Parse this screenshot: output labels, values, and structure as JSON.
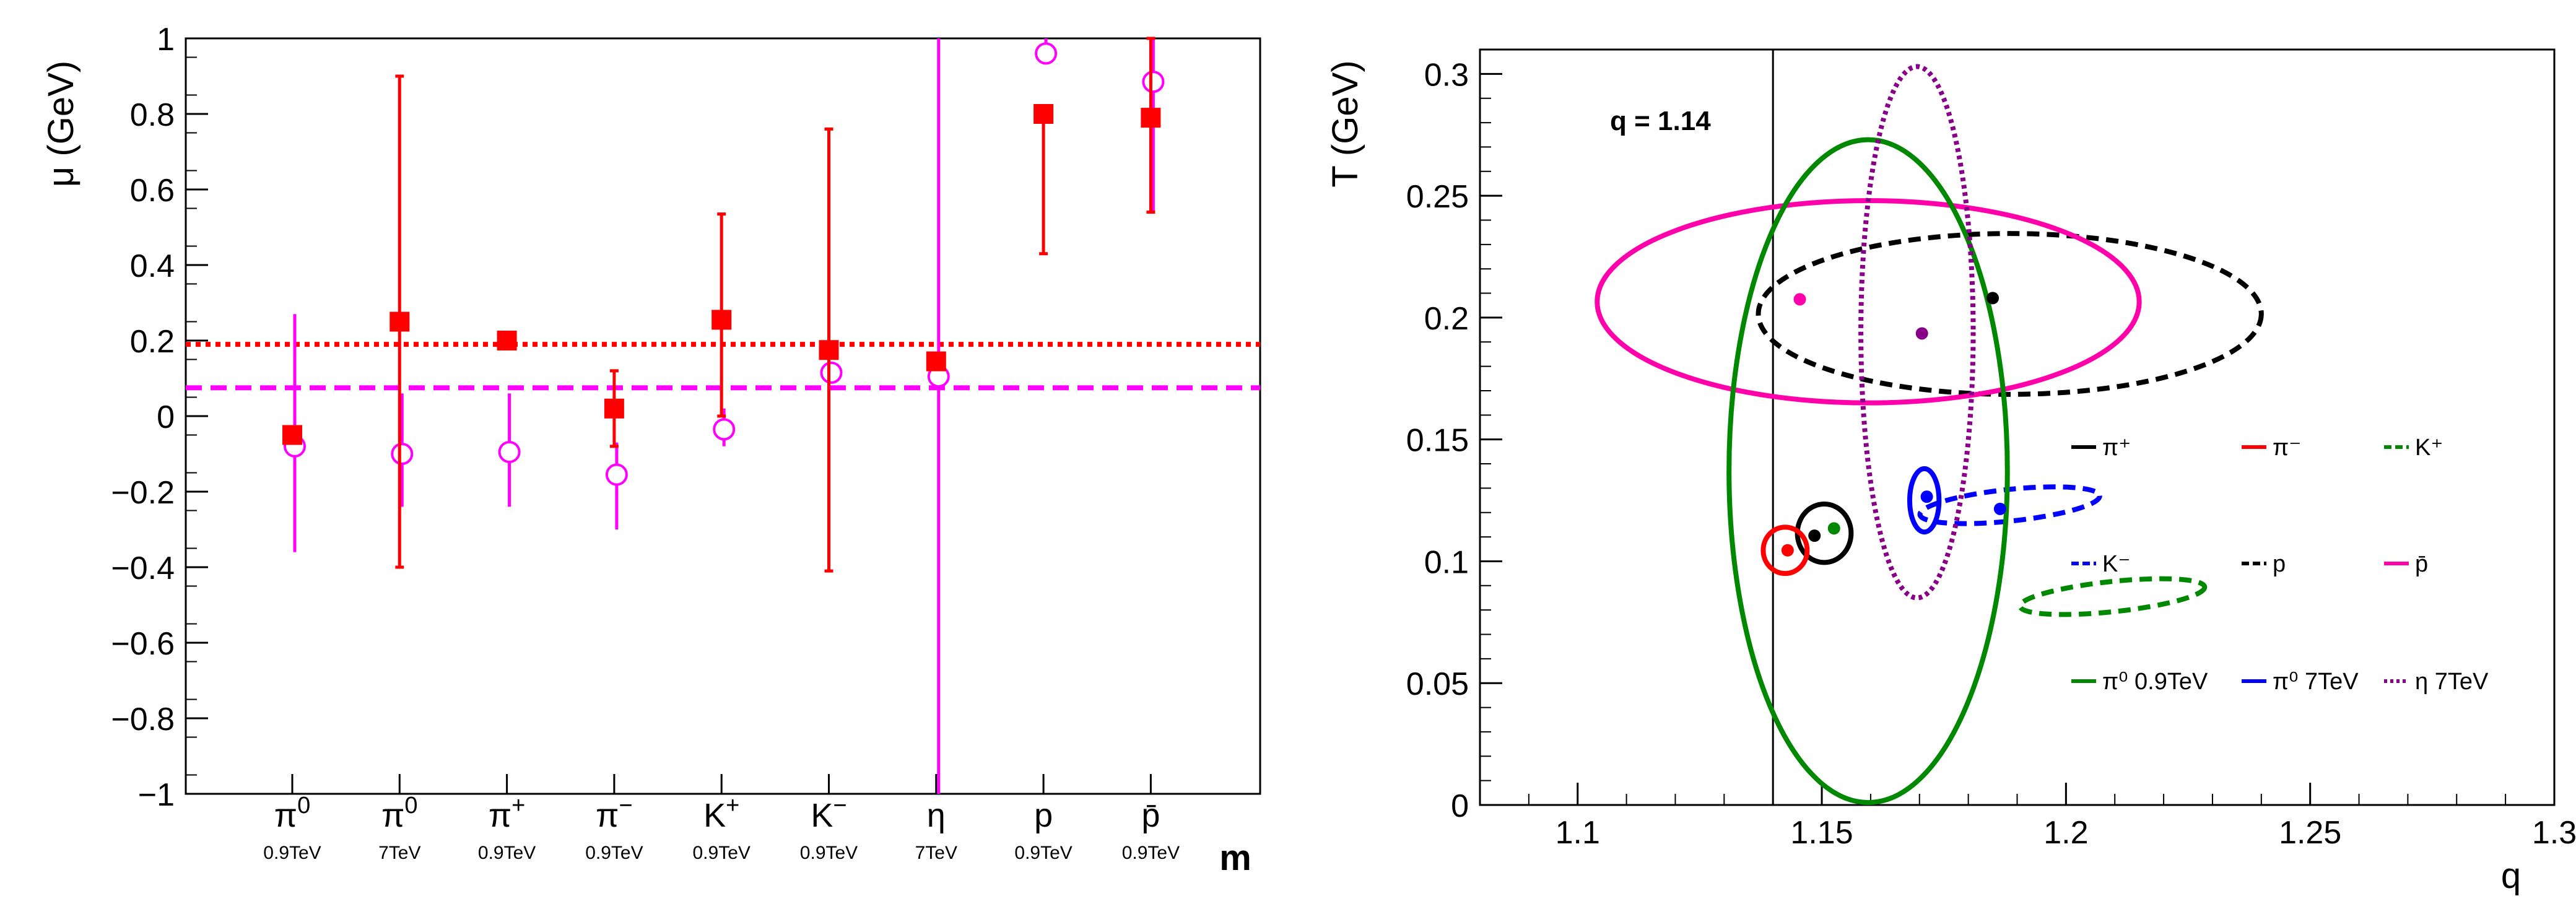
{
  "chart_data": [
    {
      "type": "scatter",
      "title": "",
      "ylabel": "μ (GeV)",
      "xlabel": "m",
      "ylim": [
        -1,
        1
      ],
      "yticks": [
        "1",
        "0.8",
        "0.6",
        "0.4",
        "0.2",
        "0",
        "−0.2",
        "−0.4",
        "−0.6",
        "−0.8",
        "−1"
      ],
      "categories": [
        {
          "name": "π",
          "sup": "0",
          "sub": "0.9TeV"
        },
        {
          "name": "π",
          "sup": "0",
          "sub": "7TeV"
        },
        {
          "name": "π",
          "sup": "+",
          "sub": "0.9TeV"
        },
        {
          "name": "π",
          "sup": "−",
          "sub": "0.9TeV"
        },
        {
          "name": "K",
          "sup": "+",
          "sub": "0.9TeV"
        },
        {
          "name": "K",
          "sup": "−",
          "sub": "0.9TeV"
        },
        {
          "name": "η",
          "sup": "",
          "sub": "7TeV"
        },
        {
          "name": "p",
          "sup": "",
          "sub": "0.9TeV"
        },
        {
          "name": "p̄",
          "sup": "",
          "sub": "0.9TeV"
        }
      ],
      "series": [
        {
          "name": "filled squares",
          "color": "#ff0000",
          "marker": "square",
          "values": [
            -0.05,
            0.25,
            0.2,
            0.02,
            0.255,
            0.175,
            0.145,
            0.8,
            0.79
          ],
          "err_low": [
            -0.05,
            -0.4,
            0.19,
            -0.08,
            0.0,
            -0.41,
            0.13,
            0.43,
            0.54
          ],
          "err_high": [
            -0.05,
            0.9,
            0.21,
            0.12,
            0.535,
            0.76,
            0.16,
            0.8,
            1.0
          ]
        },
        {
          "name": "open circles",
          "color": "#ff00ff",
          "marker": "circle-open",
          "values": [
            -0.08,
            -0.1,
            -0.095,
            -0.155,
            -0.035,
            0.115,
            0.105,
            0.96,
            0.885
          ],
          "err_low": [
            -0.36,
            -0.24,
            -0.24,
            -0.3,
            -0.08,
            0.09,
            -1.0,
            0.96,
            0.54
          ],
          "err_high": [
            0.27,
            0.06,
            0.06,
            -0.07,
            0.02,
            0.14,
            1.0,
            1.0,
            1.0
          ]
        }
      ],
      "reference_lines": [
        {
          "value": 0.19,
          "color": "#ff0000",
          "style": "dotted"
        },
        {
          "value": 0.075,
          "color": "#ff00ff",
          "style": "dashed"
        }
      ]
    },
    {
      "type": "scatter",
      "title": "",
      "xlabel": "q",
      "ylabel": "T (GeV)",
      "xlim": [
        1.08,
        1.3
      ],
      "ylim": [
        0,
        0.31
      ],
      "xticks": [
        "1.1",
        "1.15",
        "1.2",
        "1.25",
        "1.3"
      ],
      "yticks": [
        "0",
        "0.05",
        "0.1",
        "0.15",
        "0.2",
        "0.25",
        "0.3"
      ],
      "annotation": "q = 1.14",
      "vline_q": 1.14,
      "ellipses": [
        {
          "name": "π⁺",
          "color": "#000000",
          "style": "solid",
          "cx": 1.1505,
          "cy": 0.1115,
          "rx": 0.0055,
          "ry": 0.012,
          "angle": 0
        },
        {
          "name": "π⁻",
          "color": "#ff0000",
          "style": "solid",
          "cx": 1.1425,
          "cy": 0.1045,
          "rx": 0.0045,
          "ry": 0.0095,
          "angle": 0
        },
        {
          "name": "K⁺",
          "color": "#008800",
          "style": "dashed",
          "cx": 1.2095,
          "cy": 0.0855,
          "rx": 0.019,
          "ry": 0.0062,
          "angle": -6
        },
        {
          "name": "K⁻",
          "color": "#0000ff",
          "style": "dashed",
          "cx": 1.1885,
          "cy": 0.123,
          "rx": 0.0185,
          "ry": 0.0065,
          "angle": -6
        },
        {
          "name": "p",
          "color": "#000000",
          "style": "dashed",
          "cx": 1.1885,
          "cy": 0.2015,
          "rx": 0.0515,
          "ry": 0.033,
          "angle": 0
        },
        {
          "name": "p̄",
          "color": "#ff00aa",
          "style": "solid",
          "cx": 1.1595,
          "cy": 0.2065,
          "rx": 0.0555,
          "ry": 0.0415,
          "angle": 0
        },
        {
          "name": "π⁰ 0.9TeV",
          "color": "#008800",
          "style": "solid",
          "cx": 1.1595,
          "cy": 0.137,
          "rx": 0.0285,
          "ry": 0.136,
          "angle": 0
        },
        {
          "name": "π⁰ 7TeV",
          "color": "#0000ff",
          "style": "solid",
          "cx": 1.171,
          "cy": 0.125,
          "rx": 0.003,
          "ry": 0.013,
          "angle": 0
        },
        {
          "name": "η 7TeV",
          "color": "#880088",
          "style": "dotted",
          "cx": 1.1695,
          "cy": 0.194,
          "rx": 0.0115,
          "ry": 0.109,
          "angle": 0
        }
      ],
      "points": [
        {
          "x": 1.1455,
          "y": 0.2075,
          "color": "#ff00aa"
        },
        {
          "x": 1.185,
          "y": 0.208,
          "color": "#000000"
        },
        {
          "x": 1.1705,
          "y": 0.1935,
          "color": "#880088"
        },
        {
          "x": 1.1485,
          "y": 0.1105,
          "color": "#000000"
        },
        {
          "x": 1.1525,
          "y": 0.1135,
          "color": "#008800"
        },
        {
          "x": 1.143,
          "y": 0.1045,
          "color": "#ff0000"
        },
        {
          "x": 1.1715,
          "y": 0.1265,
          "color": "#0000ff"
        },
        {
          "x": 1.1865,
          "y": 0.1215,
          "color": "#0000ff"
        }
      ],
      "legend": [
        {
          "label": "π⁺",
          "color": "#000000",
          "style": "solid"
        },
        {
          "label": "π⁻",
          "color": "#ff0000",
          "style": "solid"
        },
        {
          "label": "K⁺",
          "color": "#008800",
          "style": "dashed"
        },
        {
          "label": "K⁻",
          "color": "#0000ff",
          "style": "dashed"
        },
        {
          "label": "p",
          "color": "#000000",
          "style": "dashed"
        },
        {
          "label": "p̄",
          "color": "#ff00aa",
          "style": "solid"
        },
        {
          "label": "π⁰ 0.9TeV",
          "color": "#008800",
          "style": "solid"
        },
        {
          "label": "π⁰ 7TeV",
          "color": "#0000ff",
          "style": "solid"
        },
        {
          "label": "η 7TeV",
          "color": "#880088",
          "style": "dotted"
        }
      ]
    }
  ]
}
